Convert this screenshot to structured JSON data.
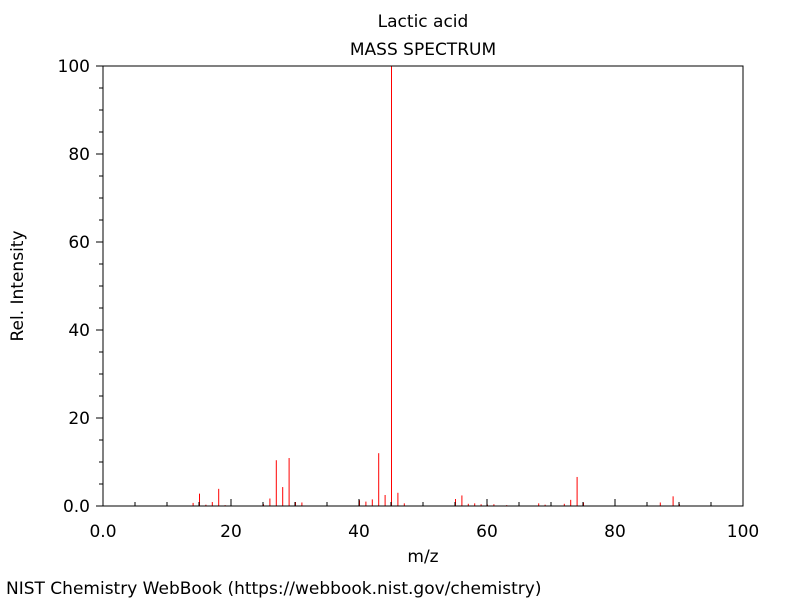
{
  "chart_data": {
    "type": "bar",
    "title": "Lactic acid",
    "subtitle": "MASS SPECTRUM",
    "xlabel": "m/z",
    "ylabel": "Rel. Intensity",
    "xlim": [
      0,
      100
    ],
    "ylim": [
      0,
      100
    ],
    "x_ticks": [
      "0.0",
      "20",
      "40",
      "60",
      "80",
      "100"
    ],
    "y_ticks": [
      "0.0",
      "20",
      "40",
      "60",
      "80",
      "100"
    ],
    "grid": false,
    "color": "#ff0000",
    "peaks": [
      {
        "mz": 14,
        "intensity": 0.7
      },
      {
        "mz": 15,
        "intensity": 2.8
      },
      {
        "mz": 16,
        "intensity": 0.3
      },
      {
        "mz": 17,
        "intensity": 0.9
      },
      {
        "mz": 18,
        "intensity": 3.9
      },
      {
        "mz": 19,
        "intensity": 0.2
      },
      {
        "mz": 25,
        "intensity": 0.4
      },
      {
        "mz": 26,
        "intensity": 1.7
      },
      {
        "mz": 27,
        "intensity": 10.4
      },
      {
        "mz": 28,
        "intensity": 4.3
      },
      {
        "mz": 29,
        "intensity": 10.9
      },
      {
        "mz": 30,
        "intensity": 0.9
      },
      {
        "mz": 31,
        "intensity": 0.8
      },
      {
        "mz": 40,
        "intensity": 1.3
      },
      {
        "mz": 41,
        "intensity": 1.0
      },
      {
        "mz": 42,
        "intensity": 1.5
      },
      {
        "mz": 43,
        "intensity": 12.0
      },
      {
        "mz": 44,
        "intensity": 2.5
      },
      {
        "mz": 45,
        "intensity": 100
      },
      {
        "mz": 46,
        "intensity": 3.0
      },
      {
        "mz": 47,
        "intensity": 0.6
      },
      {
        "mz": 55,
        "intensity": 1.6
      },
      {
        "mz": 56,
        "intensity": 2.4
      },
      {
        "mz": 57,
        "intensity": 0.5
      },
      {
        "mz": 58,
        "intensity": 0.6
      },
      {
        "mz": 59,
        "intensity": 0.4
      },
      {
        "mz": 60,
        "intensity": 0.3
      },
      {
        "mz": 61,
        "intensity": 0.4
      },
      {
        "mz": 63,
        "intensity": 0.2
      },
      {
        "mz": 68,
        "intensity": 0.6
      },
      {
        "mz": 69,
        "intensity": 0.3
      },
      {
        "mz": 72,
        "intensity": 0.5
      },
      {
        "mz": 73,
        "intensity": 1.4
      },
      {
        "mz": 74,
        "intensity": 6.6
      },
      {
        "mz": 75,
        "intensity": 0.8
      },
      {
        "mz": 87,
        "intensity": 0.8
      },
      {
        "mz": 89,
        "intensity": 2.2
      },
      {
        "mz": 90,
        "intensity": 0.4
      }
    ]
  },
  "footer": {
    "source": "NIST Chemistry WebBook (https://webbook.nist.gov/chemistry)"
  }
}
